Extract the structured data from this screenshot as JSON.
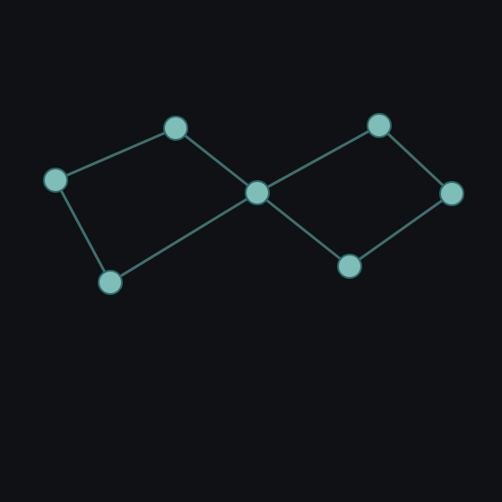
{
  "graph": {
    "node_color": "#7fbdb9",
    "edge_color": "#3f6f6d",
    "background": "#0f1115",
    "nodes": [
      {
        "id": "n1"
      },
      {
        "id": "n2"
      },
      {
        "id": "n3"
      },
      {
        "id": "n4"
      },
      {
        "id": "n5"
      },
      {
        "id": "n6"
      },
      {
        "id": "n7"
      }
    ],
    "edges": [
      [
        "n1",
        "n2"
      ],
      [
        "n1",
        "n3"
      ],
      [
        "n2",
        "n4"
      ],
      [
        "n3",
        "n4"
      ],
      [
        "n4",
        "n5"
      ],
      [
        "n4",
        "n6"
      ],
      [
        "n5",
        "n7"
      ],
      [
        "n6",
        "n7"
      ]
    ]
  }
}
